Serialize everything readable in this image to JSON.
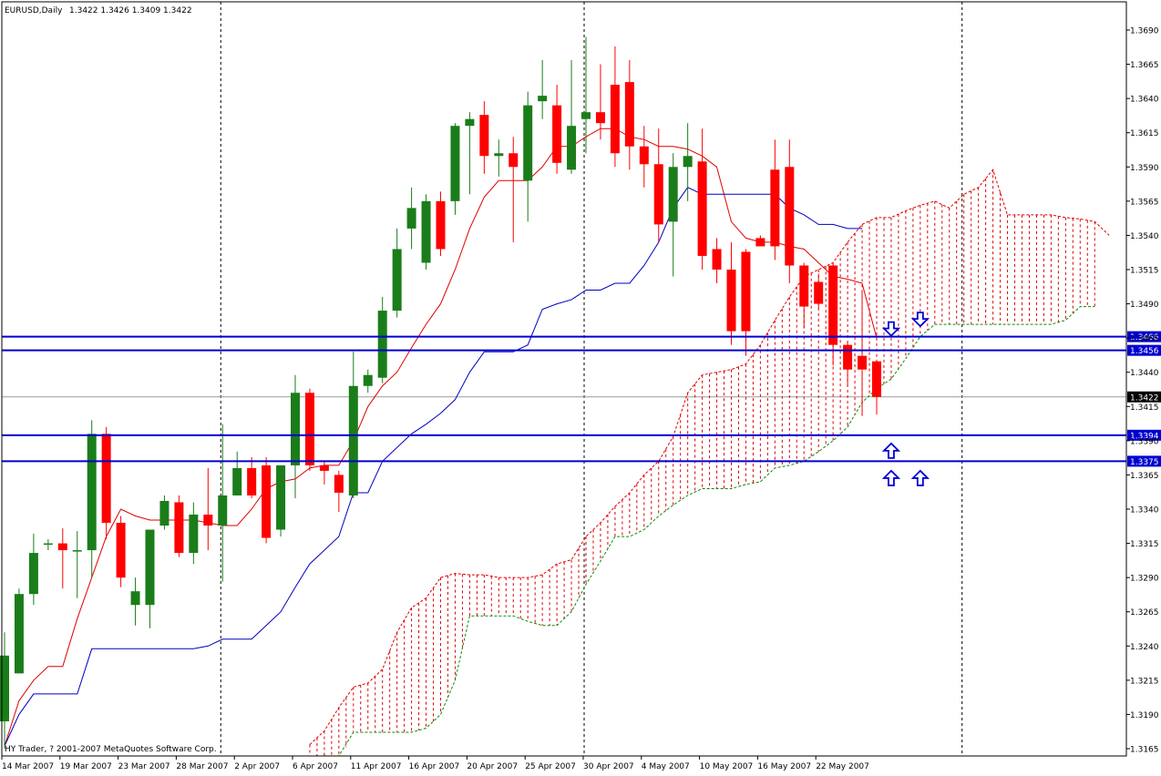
{
  "header": {
    "title": "EURUSD,Daily",
    "ohlc": "1.3422 1.3426 1.3409 1.3422"
  },
  "footer": {
    "copyright": "HY Trader, ? 2001-2007 MetaQuotes Software Corp."
  },
  "colors": {
    "bull": "#1a7d1a",
    "bear": "#ff0000",
    "tenkan": "#e00000",
    "kijun": "#0000c0",
    "span_a": "#e00000",
    "span_b": "#0a8a0a",
    "hline": "#0000d0",
    "grid": "#000000",
    "price_label_bg": "#0000d0",
    "current_label_bg": "#000000"
  },
  "chart_data": {
    "type": "candlestick",
    "symbol": "EURUSD",
    "timeframe": "Daily",
    "ylim": [
      1.3155,
      1.3705
    ],
    "y_ticks": [
      "1.3690",
      "1.3665",
      "1.3640",
      "1.3615",
      "1.3590",
      "1.3565",
      "1.3540",
      "1.3515",
      "1.3490",
      "1.3465",
      "1.3440",
      "1.3415",
      "1.3390",
      "1.3365",
      "1.3340",
      "1.3315",
      "1.3290",
      "1.3265",
      "1.3240",
      "1.3215",
      "1.3190",
      "1.3165"
    ],
    "x_labels": [
      {
        "i": 0,
        "text": "14 Mar 2007"
      },
      {
        "i": 4,
        "text": "19 Mar 2007"
      },
      {
        "i": 8,
        "text": "23 Mar 2007"
      },
      {
        "i": 12,
        "text": "28 Mar 2007"
      },
      {
        "i": 16,
        "text": "2 Apr 2007"
      },
      {
        "i": 20,
        "text": "6 Apr 2007"
      },
      {
        "i": 24,
        "text": "11 Apr 2007"
      },
      {
        "i": 28,
        "text": "16 Apr 2007"
      },
      {
        "i": 32,
        "text": "20 Apr 2007"
      },
      {
        "i": 36,
        "text": "25 Apr 2007"
      },
      {
        "i": 40,
        "text": "30 Apr 2007"
      },
      {
        "i": 44,
        "text": "4 May 2007"
      },
      {
        "i": 48,
        "text": "10 May 2007"
      },
      {
        "i": 52,
        "text": "16 May 2007"
      },
      {
        "i": 56,
        "text": "22 May 2007"
      }
    ],
    "period_separators": [
      15,
      40,
      66
    ],
    "candles": [
      {
        "o": 1.3185,
        "h": 1.325,
        "l": 1.3165,
        "c": 1.3233
      },
      {
        "o": 1.322,
        "h": 1.3282,
        "l": 1.322,
        "c": 1.3278
      },
      {
        "o": 1.3278,
        "h": 1.3322,
        "l": 1.327,
        "c": 1.3308
      },
      {
        "o": 1.3315,
        "h": 1.3318,
        "l": 1.331,
        "c": 1.3315
      },
      {
        "o": 1.3315,
        "h": 1.3326,
        "l": 1.3282,
        "c": 1.331
      },
      {
        "o": 1.331,
        "h": 1.3324,
        "l": 1.3275,
        "c": 1.331
      },
      {
        "o": 1.331,
        "h": 1.3405,
        "l": 1.329,
        "c": 1.3395
      },
      {
        "o": 1.3395,
        "h": 1.34,
        "l": 1.3318,
        "c": 1.333
      },
      {
        "o": 1.333,
        "h": 1.3335,
        "l": 1.3283,
        "c": 1.329
      },
      {
        "o": 1.327,
        "h": 1.329,
        "l": 1.3255,
        "c": 1.328
      },
      {
        "o": 1.327,
        "h": 1.332,
        "l": 1.3253,
        "c": 1.3325
      },
      {
        "o": 1.3328,
        "h": 1.335,
        "l": 1.3325,
        "c": 1.3346
      },
      {
        "o": 1.3345,
        "h": 1.335,
        "l": 1.3305,
        "c": 1.3308
      },
      {
        "o": 1.3308,
        "h": 1.3345,
        "l": 1.33,
        "c": 1.3336
      },
      {
        "o": 1.3336,
        "h": 1.337,
        "l": 1.331,
        "c": 1.3328
      },
      {
        "o": 1.3328,
        "h": 1.3402,
        "l": 1.3287,
        "c": 1.335
      },
      {
        "o": 1.335,
        "h": 1.3382,
        "l": 1.335,
        "c": 1.337
      },
      {
        "o": 1.337,
        "h": 1.3378,
        "l": 1.3348,
        "c": 1.335
      },
      {
        "o": 1.3372,
        "h": 1.3378,
        "l": 1.3315,
        "c": 1.3319
      },
      {
        "o": 1.3325,
        "h": 1.3372,
        "l": 1.332,
        "c": 1.3372
      },
      {
        "o": 1.3372,
        "h": 1.3438,
        "l": 1.3348,
        "c": 1.3425
      },
      {
        "o": 1.3425,
        "h": 1.3428,
        "l": 1.3368,
        "c": 1.3372
      },
      {
        "o": 1.3372,
        "h": 1.3375,
        "l": 1.3358,
        "c": 1.3368
      },
      {
        "o": 1.3365,
        "h": 1.3368,
        "l": 1.3338,
        "c": 1.3352
      },
      {
        "o": 1.335,
        "h": 1.3455,
        "l": 1.3348,
        "c": 1.343
      },
      {
        "o": 1.343,
        "h": 1.3442,
        "l": 1.3425,
        "c": 1.3438
      },
      {
        "o": 1.3436,
        "h": 1.3495,
        "l": 1.3432,
        "c": 1.3485
      },
      {
        "o": 1.3485,
        "h": 1.3545,
        "l": 1.348,
        "c": 1.353
      },
      {
        "o": 1.3545,
        "h": 1.3575,
        "l": 1.353,
        "c": 1.356
      },
      {
        "o": 1.352,
        "h": 1.357,
        "l": 1.3515,
        "c": 1.3565
      },
      {
        "o": 1.3565,
        "h": 1.3572,
        "l": 1.3525,
        "c": 1.353
      },
      {
        "o": 1.3565,
        "h": 1.3622,
        "l": 1.3555,
        "c": 1.362
      },
      {
        "o": 1.362,
        "h": 1.363,
        "l": 1.357,
        "c": 1.3625
      },
      {
        "o": 1.3628,
        "h": 1.3638,
        "l": 1.3585,
        "c": 1.3598
      },
      {
        "o": 1.3598,
        "h": 1.361,
        "l": 1.3583,
        "c": 1.36
      },
      {
        "o": 1.36,
        "h": 1.3612,
        "l": 1.3535,
        "c": 1.359
      },
      {
        "o": 1.358,
        "h": 1.3645,
        "l": 1.355,
        "c": 1.3635
      },
      {
        "o": 1.3638,
        "h": 1.3668,
        "l": 1.3625,
        "c": 1.3642
      },
      {
        "o": 1.3635,
        "h": 1.365,
        "l": 1.3585,
        "c": 1.3593
      },
      {
        "o": 1.3588,
        "h": 1.3668,
        "l": 1.3585,
        "c": 1.362
      },
      {
        "o": 1.3625,
        "h": 1.3685,
        "l": 1.36,
        "c": 1.363
      },
      {
        "o": 1.363,
        "h": 1.3665,
        "l": 1.361,
        "c": 1.3622
      },
      {
        "o": 1.365,
        "h": 1.3678,
        "l": 1.359,
        "c": 1.36
      },
      {
        "o": 1.3652,
        "h": 1.3668,
        "l": 1.3588,
        "c": 1.3605
      },
      {
        "o": 1.3605,
        "h": 1.362,
        "l": 1.3575,
        "c": 1.3592
      },
      {
        "o": 1.3592,
        "h": 1.3618,
        "l": 1.3535,
        "c": 1.3548
      },
      {
        "o": 1.355,
        "h": 1.36,
        "l": 1.351,
        "c": 1.359
      },
      {
        "o": 1.359,
        "h": 1.3622,
        "l": 1.3565,
        "c": 1.3598
      },
      {
        "o": 1.3594,
        "h": 1.3618,
        "l": 1.3515,
        "c": 1.3525
      },
      {
        "o": 1.353,
        "h": 1.3538,
        "l": 1.3505,
        "c": 1.3515
      },
      {
        "o": 1.3515,
        "h": 1.3535,
        "l": 1.346,
        "c": 1.347
      },
      {
        "o": 1.3528,
        "h": 1.353,
        "l": 1.3452,
        "c": 1.347
      },
      {
        "o": 1.3538,
        "h": 1.354,
        "l": 1.3535,
        "c": 1.3532
      },
      {
        "o": 1.3588,
        "h": 1.361,
        "l": 1.3522,
        "c": 1.3532
      },
      {
        "o": 1.359,
        "h": 1.361,
        "l": 1.3505,
        "c": 1.3518
      },
      {
        "o": 1.3518,
        "h": 1.352,
        "l": 1.3472,
        "c": 1.3488
      },
      {
        "o": 1.3506,
        "h": 1.3512,
        "l": 1.3487,
        "c": 1.349
      },
      {
        "o": 1.3518,
        "h": 1.3519,
        "l": 1.3445,
        "c": 1.346
      },
      {
        "o": 1.346,
        "h": 1.3462,
        "l": 1.343,
        "c": 1.3442
      },
      {
        "o": 1.3452,
        "h": 1.35,
        "l": 1.3408,
        "c": 1.3442
      },
      {
        "o": 1.3448,
        "h": 1.3449,
        "l": 1.3409,
        "c": 1.3422
      }
    ],
    "tenkan_sen": [
      [
        0,
        1.3167
      ],
      [
        1,
        1.32
      ],
      [
        2,
        1.3215
      ],
      [
        3,
        1.3225
      ],
      [
        4,
        1.3225
      ],
      [
        5,
        1.326
      ],
      [
        6,
        1.329
      ],
      [
        7,
        1.332
      ],
      [
        8,
        1.334
      ],
      [
        9,
        1.3335
      ],
      [
        10,
        1.3332
      ],
      [
        11,
        1.3332
      ],
      [
        12,
        1.3332
      ],
      [
        13,
        1.3332
      ],
      [
        14,
        1.333
      ],
      [
        15,
        1.3328
      ],
      [
        16,
        1.3328
      ],
      [
        17,
        1.334
      ],
      [
        18,
        1.3355
      ],
      [
        19,
        1.336
      ],
      [
        20,
        1.3362
      ],
      [
        21,
        1.337
      ],
      [
        22,
        1.3372
      ],
      [
        23,
        1.3372
      ],
      [
        24,
        1.339
      ],
      [
        25,
        1.3415
      ],
      [
        26,
        1.343
      ],
      [
        27,
        1.344
      ],
      [
        28,
        1.3458
      ],
      [
        29,
        1.3475
      ],
      [
        30,
        1.349
      ],
      [
        31,
        1.3515
      ],
      [
        32,
        1.3545
      ],
      [
        33,
        1.3568
      ],
      [
        34,
        1.358
      ],
      [
        35,
        1.358
      ],
      [
        36,
        1.358
      ],
      [
        37,
        1.359
      ],
      [
        38,
        1.3605
      ],
      [
        39,
        1.3605
      ],
      [
        40,
        1.3612
      ],
      [
        41,
        1.3618
      ],
      [
        42,
        1.3618
      ],
      [
        43,
        1.3612
      ],
      [
        44,
        1.361
      ],
      [
        45,
        1.3605
      ],
      [
        46,
        1.3605
      ],
      [
        47,
        1.3603
      ],
      [
        48,
        1.3598
      ],
      [
        49,
        1.359
      ],
      [
        50,
        1.355
      ],
      [
        51,
        1.3538
      ],
      [
        52,
        1.3535
      ],
      [
        53,
        1.3535
      ],
      [
        54,
        1.3532
      ],
      [
        55,
        1.353
      ],
      [
        56,
        1.352
      ],
      [
        57,
        1.351
      ],
      [
        58,
        1.3508
      ],
      [
        59,
        1.3505
      ],
      [
        60,
        1.3465
      ]
    ],
    "kijun_sen": [
      [
        0,
        1.3167
      ],
      [
        1,
        1.319
      ],
      [
        2,
        1.3205
      ],
      [
        3,
        1.3205
      ],
      [
        4,
        1.3205
      ],
      [
        5,
        1.3205
      ],
      [
        6,
        1.3238
      ],
      [
        7,
        1.3238
      ],
      [
        8,
        1.3238
      ],
      [
        9,
        1.3238
      ],
      [
        10,
        1.3238
      ],
      [
        11,
        1.3238
      ],
      [
        12,
        1.3238
      ],
      [
        13,
        1.3238
      ],
      [
        14,
        1.324
      ],
      [
        15,
        1.3245
      ],
      [
        16,
        1.3245
      ],
      [
        17,
        1.3245
      ],
      [
        18,
        1.3255
      ],
      [
        19,
        1.3265
      ],
      [
        20,
        1.3283
      ],
      [
        21,
        1.33
      ],
      [
        22,
        1.331
      ],
      [
        23,
        1.332
      ],
      [
        24,
        1.3352
      ],
      [
        25,
        1.3352
      ],
      [
        26,
        1.3375
      ],
      [
        27,
        1.3385
      ],
      [
        28,
        1.3395
      ],
      [
        29,
        1.3402
      ],
      [
        30,
        1.341
      ],
      [
        31,
        1.342
      ],
      [
        32,
        1.344
      ],
      [
        33,
        1.3455
      ],
      [
        34,
        1.3455
      ],
      [
        35,
        1.3455
      ],
      [
        36,
        1.346
      ],
      [
        37,
        1.3486
      ],
      [
        38,
        1.349
      ],
      [
        39,
        1.3493
      ],
      [
        40,
        1.35
      ],
      [
        41,
        1.35
      ],
      [
        42,
        1.3505
      ],
      [
        43,
        1.3505
      ],
      [
        44,
        1.3518
      ],
      [
        45,
        1.3535
      ],
      [
        46,
        1.356
      ],
      [
        47,
        1.3575
      ],
      [
        48,
        1.357
      ],
      [
        49,
        1.357
      ],
      [
        50,
        1.357
      ],
      [
        51,
        1.357
      ],
      [
        52,
        1.357
      ],
      [
        53,
        1.357
      ],
      [
        54,
        1.356
      ],
      [
        55,
        1.3555
      ],
      [
        56,
        1.3548
      ],
      [
        57,
        1.3548
      ],
      [
        58,
        1.3545
      ],
      [
        59,
        1.3545
      ]
    ],
    "senkou_span_a": [
      [
        21,
        1.3168
      ],
      [
        22,
        1.3178
      ],
      [
        23,
        1.3195
      ],
      [
        24,
        1.321
      ],
      [
        25,
        1.3213
      ],
      [
        26,
        1.3223
      ],
      [
        27,
        1.325
      ],
      [
        28,
        1.3268
      ],
      [
        29,
        1.3275
      ],
      [
        30,
        1.329
      ],
      [
        31,
        1.3293
      ],
      [
        32,
        1.3292
      ],
      [
        33,
        1.3292
      ],
      [
        34,
        1.329
      ],
      [
        35,
        1.329
      ],
      [
        36,
        1.329
      ],
      [
        37,
        1.3292
      ],
      [
        38,
        1.33
      ],
      [
        39,
        1.3303
      ],
      [
        40,
        1.332
      ],
      [
        41,
        1.333
      ],
      [
        42,
        1.3342
      ],
      [
        43,
        1.3352
      ],
      [
        44,
        1.3365
      ],
      [
        45,
        1.3375
      ],
      [
        46,
        1.3393
      ],
      [
        47,
        1.3425
      ],
      [
        48,
        1.3438
      ],
      [
        49,
        1.344
      ],
      [
        50,
        1.3442
      ],
      [
        51,
        1.3446
      ],
      [
        52,
        1.346
      ],
      [
        53,
        1.3478
      ],
      [
        54,
        1.3495
      ],
      [
        55,
        1.351
      ],
      [
        56,
        1.3515
      ],
      [
        57,
        1.352
      ],
      [
        58,
        1.3535
      ],
      [
        59,
        1.3548
      ],
      [
        60,
        1.3553
      ],
      [
        61,
        1.3553
      ],
      [
        62,
        1.3558
      ],
      [
        63,
        1.3562
      ],
      [
        64,
        1.3565
      ],
      [
        65,
        1.356
      ],
      [
        66,
        1.357
      ],
      [
        67,
        1.3575
      ],
      [
        68,
        1.3588
      ],
      [
        69,
        1.3555
      ],
      [
        70,
        1.3555
      ],
      [
        71,
        1.3555
      ],
      [
        72,
        1.3555
      ],
      [
        73,
        1.3553
      ],
      [
        74,
        1.3552
      ],
      [
        75,
        1.355
      ],
      [
        76,
        1.354
      ]
    ],
    "senkou_span_b": [
      [
        21,
        1.3155
      ],
      [
        22,
        1.3155
      ],
      [
        23,
        1.3155
      ],
      [
        24,
        1.3177
      ],
      [
        25,
        1.3177
      ],
      [
        26,
        1.3177
      ],
      [
        27,
        1.3177
      ],
      [
        28,
        1.3177
      ],
      [
        29,
        1.318
      ],
      [
        30,
        1.319
      ],
      [
        31,
        1.3215
      ],
      [
        32,
        1.3262
      ],
      [
        33,
        1.3262
      ],
      [
        34,
        1.3262
      ],
      [
        35,
        1.3262
      ],
      [
        36,
        1.3258
      ],
      [
        37,
        1.3255
      ],
      [
        38,
        1.3255
      ],
      [
        39,
        1.3265
      ],
      [
        40,
        1.3285
      ],
      [
        41,
        1.3302
      ],
      [
        42,
        1.332
      ],
      [
        43,
        1.332
      ],
      [
        44,
        1.3325
      ],
      [
        45,
        1.3335
      ],
      [
        46,
        1.3343
      ],
      [
        47,
        1.335
      ],
      [
        48,
        1.3355
      ],
      [
        49,
        1.3355
      ],
      [
        50,
        1.3355
      ],
      [
        51,
        1.3358
      ],
      [
        52,
        1.336
      ],
      [
        53,
        1.337
      ],
      [
        54,
        1.3372
      ],
      [
        55,
        1.3375
      ],
      [
        56,
        1.3382
      ],
      [
        57,
        1.339
      ],
      [
        58,
        1.34
      ],
      [
        59,
        1.3418
      ],
      [
        60,
        1.3428
      ],
      [
        61,
        1.3435
      ],
      [
        62,
        1.345
      ],
      [
        63,
        1.3466
      ],
      [
        64,
        1.3475
      ],
      [
        65,
        1.3475
      ],
      [
        66,
        1.3475
      ],
      [
        67,
        1.3475
      ],
      [
        68,
        1.3475
      ],
      [
        69,
        1.3475
      ],
      [
        70,
        1.3475
      ],
      [
        71,
        1.3475
      ],
      [
        72,
        1.3475
      ],
      [
        73,
        1.3478
      ],
      [
        74,
        1.3488
      ],
      [
        75,
        1.3488
      ]
    ],
    "horizontal_lines": [
      {
        "price": 1.3466,
        "label": "1.3466"
      },
      {
        "price": 1.3456,
        "label": "1.3456"
      },
      {
        "price": 1.3394,
        "label": "1.3394"
      },
      {
        "price": 1.3375,
        "label": "1.3375"
      }
    ],
    "current_price": {
      "price": 1.3422,
      "label": "1.3422"
    },
    "arrows": [
      {
        "i": 61,
        "price": 1.3468,
        "dir": "down"
      },
      {
        "i": 63,
        "price": 1.3475,
        "dir": "down"
      },
      {
        "i": 61,
        "price": 1.3388,
        "dir": "up"
      },
      {
        "i": 61,
        "price": 1.3368,
        "dir": "up"
      },
      {
        "i": 63,
        "price": 1.3368,
        "dir": "up"
      }
    ]
  }
}
